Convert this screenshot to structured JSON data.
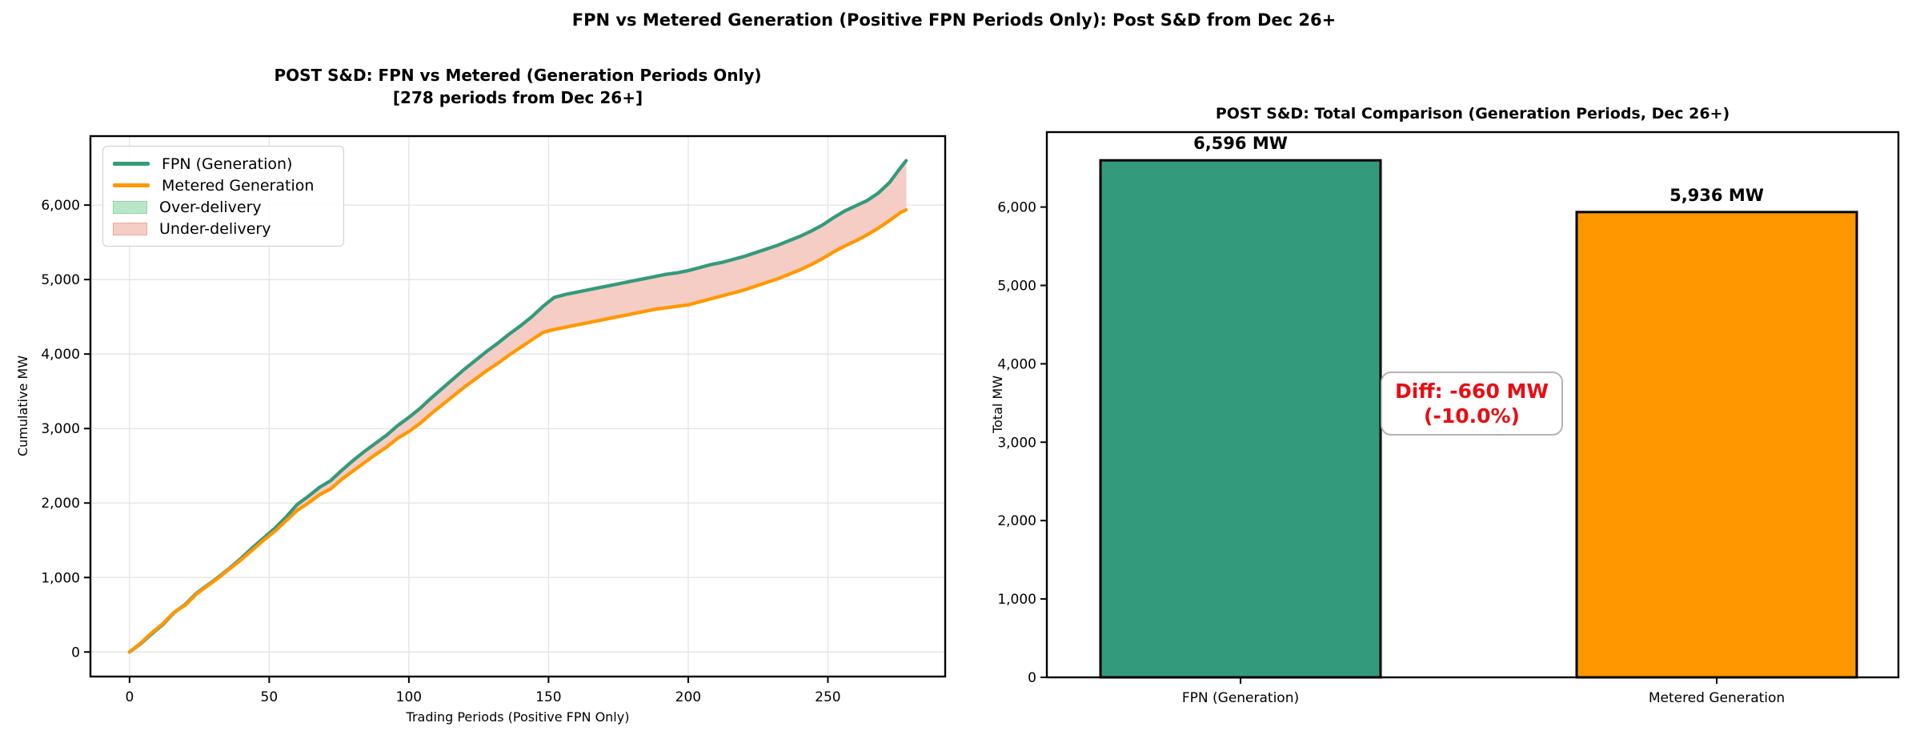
{
  "figure": {
    "title": "FPN vs Metered Generation (Positive FPN Periods Only): Post S&D from Dec 26+"
  },
  "colors": {
    "fpn_line": "#349a7c",
    "metered_line": "#ff9800",
    "over_fill": "#b9e6c9",
    "over_edge": "#8fd4a8",
    "under_fill": "#f5cdc4",
    "under_edge": "#eba9a0",
    "grid": "#e3e3e3",
    "axis": "#000000",
    "annotation_red": "#ea0c12",
    "legend_border": "#cccccc"
  },
  "chart_data": [
    {
      "type": "line",
      "title_lines": [
        "POST S&D: FPN vs Metered (Generation Periods Only)",
        "[278 periods from Dec 26+]"
      ],
      "xlabel": "Trading Periods (Positive FPN Only)",
      "ylabel": "Cumulative MW",
      "legend": [
        "FPN (Generation)",
        "Metered Generation",
        "Over-delivery",
        "Under-delivery"
      ],
      "legend_position": "upper left",
      "grid": true,
      "xlim": [
        -14,
        292
      ],
      "ylim": [
        -330,
        6926
      ],
      "xticks": [
        0,
        50,
        100,
        150,
        200,
        250
      ],
      "xtick_labels": [
        "0",
        "50",
        "100",
        "150",
        "200",
        "250"
      ],
      "yticks": [
        0,
        1000,
        2000,
        3000,
        4000,
        5000,
        6000
      ],
      "ytick_labels": [
        "0",
        "1,000",
        "2,000",
        "3,000",
        "4,000",
        "5,000",
        "6,000"
      ],
      "x": [
        0,
        4,
        8,
        12,
        16,
        20,
        24,
        28,
        32,
        36,
        40,
        44,
        48,
        52,
        56,
        60,
        64,
        68,
        72,
        76,
        80,
        84,
        88,
        92,
        96,
        100,
        104,
        108,
        112,
        116,
        120,
        124,
        128,
        132,
        136,
        140,
        144,
        148,
        152,
        156,
        160,
        164,
        168,
        172,
        176,
        180,
        184,
        188,
        192,
        196,
        200,
        204,
        208,
        212,
        216,
        220,
        224,
        228,
        232,
        236,
        240,
        244,
        248,
        252,
        256,
        260,
        264,
        268,
        272,
        276,
        278
      ],
      "series": [
        {
          "name": "FPN (Generation)",
          "values": [
            0,
            110,
            245,
            370,
            530,
            640,
            790,
            900,
            1010,
            1130,
            1260,
            1400,
            1530,
            1660,
            1810,
            1980,
            2090,
            2210,
            2300,
            2440,
            2570,
            2690,
            2800,
            2910,
            3040,
            3150,
            3270,
            3410,
            3540,
            3670,
            3800,
            3920,
            4040,
            4150,
            4270,
            4380,
            4500,
            4640,
            4760,
            4800,
            4830,
            4860,
            4890,
            4920,
            4950,
            4980,
            5010,
            5040,
            5070,
            5090,
            5120,
            5160,
            5200,
            5230,
            5270,
            5310,
            5360,
            5410,
            5460,
            5520,
            5580,
            5650,
            5730,
            5830,
            5920,
            5990,
            6060,
            6160,
            6300,
            6500,
            6596
          ]
        },
        {
          "name": "Metered Generation",
          "values": [
            0,
            120,
            258,
            382,
            535,
            630,
            780,
            890,
            1000,
            1120,
            1240,
            1370,
            1500,
            1620,
            1760,
            1900,
            2000,
            2110,
            2190,
            2320,
            2430,
            2540,
            2650,
            2750,
            2870,
            2960,
            3070,
            3200,
            3320,
            3440,
            3560,
            3670,
            3780,
            3880,
            3990,
            4090,
            4190,
            4290,
            4330,
            4360,
            4390,
            4420,
            4450,
            4480,
            4510,
            4540,
            4570,
            4600,
            4620,
            4640,
            4660,
            4700,
            4740,
            4780,
            4820,
            4860,
            4910,
            4960,
            5010,
            5070,
            5130,
            5200,
            5280,
            5370,
            5450,
            5520,
            5600,
            5690,
            5790,
            5900,
            5936
          ]
        }
      ]
    },
    {
      "type": "bar",
      "title": "POST S&D: Total Comparison (Generation Periods, Dec 26+)",
      "ylabel": "Total MW",
      "categories": [
        "FPN (Generation)",
        "Metered Generation"
      ],
      "values": [
        6596,
        5936
      ],
      "bar_labels": [
        "6,596 MW",
        "5,936 MW"
      ],
      "bar_colors": [
        "#349a7c",
        "#ff9800"
      ],
      "annotation_lines": [
        "Diff: -660 MW",
        "(-10.0%)"
      ],
      "grid": false,
      "ylim": [
        0,
        6956
      ],
      "yticks": [
        0,
        1000,
        2000,
        3000,
        4000,
        5000,
        6000
      ],
      "ytick_labels": [
        "0",
        "1,000",
        "2,000",
        "3,000",
        "4,000",
        "5,000",
        "6,000"
      ]
    }
  ]
}
